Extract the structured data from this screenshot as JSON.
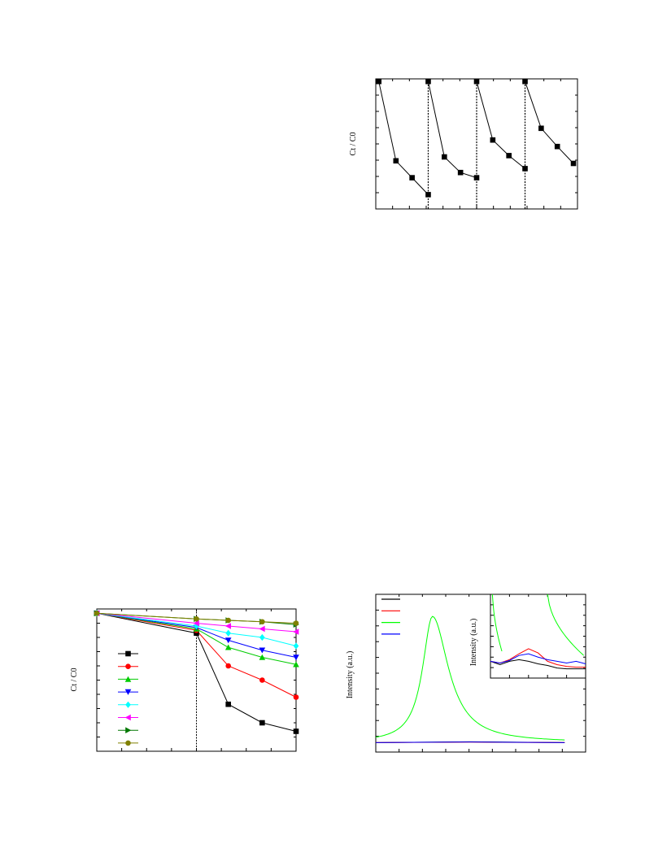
{
  "labels": {
    "cycle_ylabel": "Ct / C0",
    "dye_ylabel": "Ct / C0",
    "spectrum_ylabel": "Intensity (a.u.)",
    "inset_ylabel": "Intensity (a.u.)"
  },
  "chart_data": [
    {
      "id": "cycle",
      "type": "line",
      "ylabel": "Ct / C0",
      "xlim": [
        0,
        1
      ],
      "ylim": [
        0,
        1
      ],
      "marker": "square",
      "color": "#000000",
      "cycles": [
        [
          [
            0.015,
            0.98
          ],
          [
            0.1,
            0.37
          ],
          [
            0.18,
            0.24
          ],
          [
            0.26,
            0.11
          ]
        ],
        [
          [
            0.26,
            0.98
          ],
          [
            0.34,
            0.4
          ],
          [
            0.42,
            0.28
          ],
          [
            0.5,
            0.24
          ]
        ],
        [
          [
            0.5,
            0.98
          ],
          [
            0.58,
            0.53
          ],
          [
            0.66,
            0.41
          ],
          [
            0.74,
            0.31
          ]
        ],
        [
          [
            0.74,
            0.98
          ],
          [
            0.82,
            0.62
          ],
          [
            0.9,
            0.48
          ],
          [
            0.98,
            0.35
          ]
        ]
      ],
      "dividers": [
        0.26,
        0.5,
        0.74
      ]
    },
    {
      "id": "dye",
      "type": "line",
      "ylabel": "Ct / C0",
      "xlim": [
        0,
        1
      ],
      "ylim": [
        0,
        1
      ],
      "x": [
        0.0,
        0.5,
        0.66,
        0.83,
        1.0
      ],
      "divider": 0.5,
      "series": [
        {
          "marker": "square",
          "color": "#000000",
          "values": [
            0.97,
            0.83,
            0.33,
            0.2,
            0.14
          ]
        },
        {
          "marker": "circle",
          "color": "#ff0000",
          "values": [
            0.97,
            0.85,
            0.6,
            0.5,
            0.38
          ]
        },
        {
          "marker": "triangle-up",
          "color": "#00cc00",
          "values": [
            0.97,
            0.86,
            0.73,
            0.66,
            0.61
          ]
        },
        {
          "marker": "triangle-down",
          "color": "#0000ff",
          "values": [
            0.97,
            0.87,
            0.78,
            0.71,
            0.66
          ]
        },
        {
          "marker": "diamond",
          "color": "#00ffff",
          "values": [
            0.97,
            0.88,
            0.83,
            0.8,
            0.74
          ]
        },
        {
          "marker": "triangle-left",
          "color": "#ff00ff",
          "values": [
            0.97,
            0.9,
            0.88,
            0.86,
            0.84
          ]
        },
        {
          "marker": "triangle-right",
          "color": "#007700",
          "values": [
            0.97,
            0.93,
            0.92,
            0.91,
            0.89
          ]
        },
        {
          "marker": "hexagon",
          "color": "#808000",
          "values": [
            0.97,
            0.93,
            0.92,
            0.91,
            0.9
          ]
        }
      ]
    },
    {
      "id": "spectrum",
      "type": "line",
      "ylabel": "Intensity (a.u.)",
      "xlim": [
        0,
        1
      ],
      "ylim": [
        0,
        1
      ],
      "series": [
        {
          "color": "#000000",
          "shape": "flat",
          "values": [
            0.06,
            0.065,
            0.06
          ]
        },
        {
          "color": "#ff0000",
          "shape": "flat",
          "values": [
            0.06,
            0.063,
            0.06
          ]
        },
        {
          "color": "#00ff00",
          "shape": "peak",
          "center": 0.3,
          "height": 0.8,
          "base": 0.06
        },
        {
          "color": "#0000ff",
          "shape": "flat",
          "values": [
            0.06,
            0.064,
            0.06
          ]
        }
      ]
    },
    {
      "id": "spectrum-inset",
      "type": "line",
      "ylabel": "Intensity (a.u.)",
      "xlim": [
        0,
        1
      ],
      "ylim": [
        0,
        1
      ],
      "series": [
        {
          "color": "#000000",
          "x": [
            0,
            0.1,
            0.2,
            0.3,
            0.4,
            0.5,
            0.6,
            0.7,
            0.8,
            0.9,
            1.0
          ],
          "values": [
            0.2,
            0.16,
            0.2,
            0.22,
            0.2,
            0.17,
            0.15,
            0.12,
            0.11,
            0.11,
            0.11
          ]
        },
        {
          "color": "#ff0000",
          "x": [
            0,
            0.1,
            0.2,
            0.3,
            0.4,
            0.5,
            0.6,
            0.7,
            0.8,
            0.9,
            1.0
          ],
          "values": [
            0.2,
            0.18,
            0.22,
            0.29,
            0.35,
            0.3,
            0.2,
            0.16,
            0.14,
            0.13,
            0.13
          ]
        },
        {
          "color": "#0000ff",
          "x": [
            0,
            0.1,
            0.2,
            0.3,
            0.4,
            0.5,
            0.6,
            0.7,
            0.8,
            0.9,
            1.0
          ],
          "values": [
            0.2,
            0.18,
            0.21,
            0.27,
            0.29,
            0.25,
            0.22,
            0.2,
            0.18,
            0.2,
            0.17
          ]
        },
        {
          "color": "#00ff00",
          "shape": "edges",
          "values": [
            1.0,
            0.3
          ]
        }
      ]
    }
  ]
}
